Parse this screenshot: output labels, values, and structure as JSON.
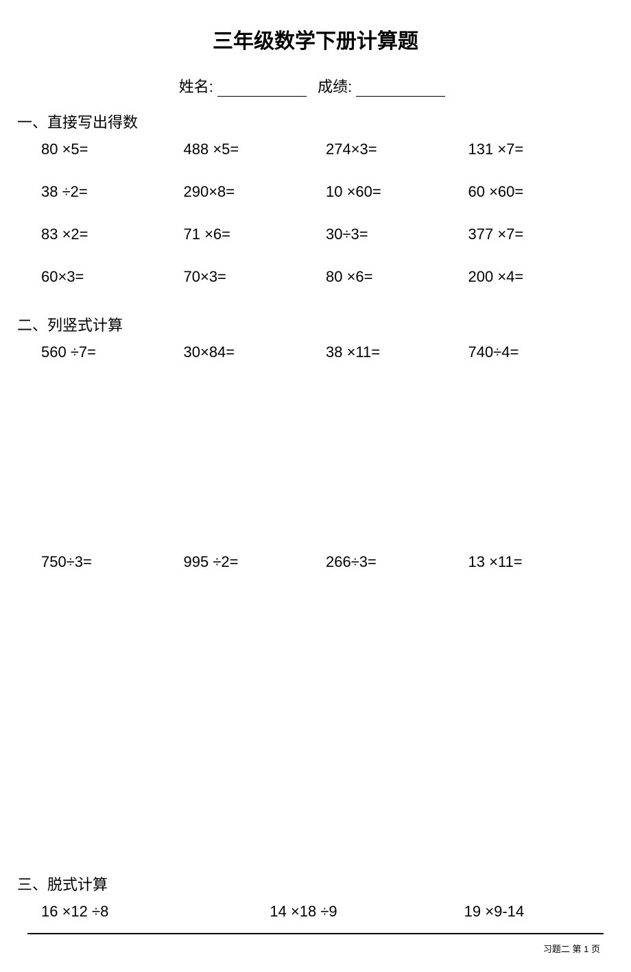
{
  "title": "三年级数学下册计算题",
  "info": {
    "name_label": "姓名:",
    "score_label": "成绩:"
  },
  "section1": {
    "header": "一、直接写出得数",
    "problems": [
      "80 ×5=",
      "488 ×5=",
      "274×3=",
      "131 ×7=",
      "38 ÷2=",
      "290×8=",
      "10 ×60=",
      "60 ×60=",
      "83 ×2=",
      "71 ×6=",
      "30÷3=",
      "377 ×7=",
      "60×3=",
      "70×3=",
      "80 ×6=",
      "200 ×4="
    ]
  },
  "section2": {
    "header": "二、列竖式计算",
    "row1": [
      "560 ÷7=",
      "30×84=",
      "38 ×11=",
      "740÷4="
    ],
    "row2": [
      "750÷3=",
      "995 ÷2=",
      "266÷3=",
      "13 ×11="
    ]
  },
  "section3": {
    "header": "三、脱式计算",
    "problems": [
      "16 ×12 ÷8",
      "14 ×18 ÷9",
      "19 ×9-14"
    ]
  },
  "footer": "习题二 第 1 页"
}
